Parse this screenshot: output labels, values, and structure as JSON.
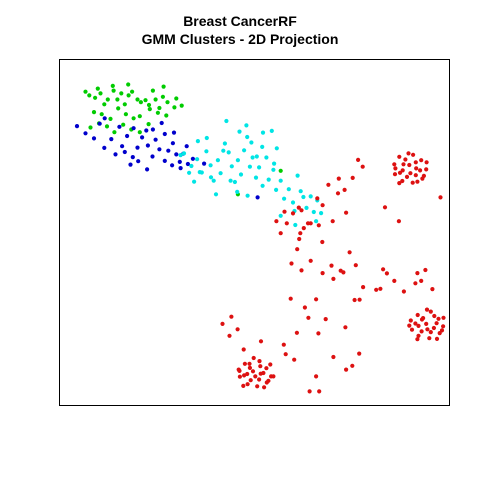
{
  "chart_data": {
    "type": "scatter",
    "title": "Breast CancerRF",
    "subtitle": "GMM Clusters - 2D Projection",
    "xlabel": "",
    "ylabel": "",
    "xlim": [
      0,
      100
    ],
    "ylim": [
      0,
      100
    ],
    "grid": false,
    "axes_visible": false,
    "series": [
      {
        "color": "#00cc00",
        "points": [
          [
            6.1,
            91.3
          ],
          [
            7.1,
            90.2
          ],
          [
            8.6,
            89.5
          ],
          [
            10.0,
            90.8
          ],
          [
            11.0,
            87.6
          ],
          [
            11.9,
            89.0
          ],
          [
            13.4,
            91.6
          ],
          [
            14.4,
            89.0
          ],
          [
            15.4,
            90.8
          ],
          [
            16.3,
            87.6
          ],
          [
            17.3,
            90.2
          ],
          [
            18.2,
            91.3
          ],
          [
            19.6,
            89.0
          ],
          [
            20.5,
            88.2
          ],
          [
            21.7,
            88.8
          ],
          [
            22.6,
            87.4
          ],
          [
            23.6,
            91.6
          ],
          [
            24.3,
            89.0
          ],
          [
            25.3,
            86.5
          ],
          [
            26.2,
            89.8
          ],
          [
            27.4,
            88.2
          ],
          [
            8.3,
            85.3
          ],
          [
            10.3,
            84.7
          ],
          [
            12.6,
            83.3
          ],
          [
            14.6,
            86.4
          ],
          [
            16.6,
            84.7
          ],
          [
            18.6,
            83.5
          ],
          [
            20.2,
            84.1
          ],
          [
            22.8,
            86.2
          ],
          [
            24.9,
            85.1
          ],
          [
            27.1,
            84.3
          ],
          [
            29.2,
            86.7
          ],
          [
            7.4,
            80.8
          ],
          [
            9.6,
            82.0
          ],
          [
            11.7,
            81.1
          ],
          [
            13.6,
            79.4
          ],
          [
            15.9,
            81.6
          ],
          [
            18.0,
            80.2
          ],
          [
            20.2,
            79.4
          ],
          [
            22.5,
            81.8
          ],
          [
            29.7,
            89.3
          ],
          [
            31.1,
            87.2
          ],
          [
            26.4,
            92.8
          ],
          [
            13.2,
            93.0
          ],
          [
            9.3,
            92.2
          ],
          [
            17.2,
            93.4
          ],
          [
            56.8,
            68.1
          ],
          [
            45.7,
            61.2
          ]
        ]
      },
      {
        "color": "#0000cc",
        "points": [
          [
            3.9,
            81.2
          ],
          [
            6.1,
            79.1
          ],
          [
            8.3,
            77.6
          ],
          [
            9.8,
            81.9
          ],
          [
            11.0,
            74.8
          ],
          [
            12.8,
            77.4
          ],
          [
            13.9,
            72.9
          ],
          [
            15.6,
            75.3
          ],
          [
            16.9,
            78.3
          ],
          [
            18.4,
            72.1
          ],
          [
            19.6,
            74.9
          ],
          [
            20.8,
            77.9
          ],
          [
            22.3,
            75.5
          ],
          [
            23.5,
            72.3
          ],
          [
            24.3,
            77.2
          ],
          [
            25.3,
            74.4
          ],
          [
            26.7,
            71.0
          ],
          [
            27.6,
            74.0
          ],
          [
            28.8,
            76.2
          ],
          [
            29.7,
            72.9
          ],
          [
            30.6,
            70.7
          ],
          [
            31.5,
            73.1
          ],
          [
            32.7,
            70.1
          ],
          [
            34.0,
            71.6
          ],
          [
            17.8,
            69.9
          ],
          [
            19.8,
            70.9
          ],
          [
            22.1,
            68.5
          ],
          [
            23.6,
            80.2
          ],
          [
            25.9,
            82.1
          ],
          [
            26.7,
            78.9
          ],
          [
            29.1,
            79.3
          ],
          [
            14.9,
            81.0
          ],
          [
            16.3,
            73.6
          ],
          [
            18.6,
            80.6
          ],
          [
            21.9,
            79.9
          ],
          [
            28.6,
            69.7
          ],
          [
            30.8,
            68.9
          ],
          [
            32.4,
            75.3
          ],
          [
            11.1,
            83.5
          ],
          [
            36.9,
            70.2
          ],
          [
            50.8,
            60.3
          ]
        ]
      },
      {
        "color": "#00e5e5",
        "points": [
          [
            31.7,
            73.2
          ],
          [
            33.6,
            69.5
          ],
          [
            35.1,
            71.5
          ],
          [
            36.3,
            67.6
          ],
          [
            37.5,
            73.8
          ],
          [
            38.6,
            69.7
          ],
          [
            39.4,
            65.2
          ],
          [
            40.5,
            71.2
          ],
          [
            41.2,
            67.4
          ],
          [
            42.3,
            76.1
          ],
          [
            43.3,
            73.5
          ],
          [
            44.1,
            69.4
          ],
          [
            44.9,
            64.8
          ],
          [
            45.7,
            71.2
          ],
          [
            46.5,
            67.0
          ],
          [
            47.3,
            74.1
          ],
          [
            48.1,
            78.0
          ],
          [
            48.8,
            69.3
          ],
          [
            49.5,
            72.0
          ],
          [
            50.4,
            66.1
          ],
          [
            51.2,
            69.1
          ],
          [
            52.0,
            75.1
          ],
          [
            53.1,
            72.0
          ],
          [
            53.7,
            65.5
          ],
          [
            54.9,
            68.4
          ],
          [
            55.6,
            62.5
          ],
          [
            56.8,
            65.2
          ],
          [
            57.7,
            59.9
          ],
          [
            58.9,
            62.7
          ],
          [
            60.0,
            58.8
          ],
          [
            61.2,
            66.7
          ],
          [
            62.0,
            62.1
          ],
          [
            63.5,
            57.2
          ],
          [
            64.6,
            60.6
          ],
          [
            65.4,
            56.0
          ],
          [
            66.3,
            59.4
          ],
          [
            67.3,
            55.7
          ],
          [
            46.1,
            79.6
          ],
          [
            43.8,
            65.2
          ],
          [
            40.0,
            61.2
          ],
          [
            38.7,
            66.2
          ],
          [
            35.8,
            67.7
          ],
          [
            33.0,
            67.5
          ],
          [
            30.8,
            72.7
          ],
          [
            34.3,
            64.9
          ],
          [
            60.6,
            52.2
          ],
          [
            56.8,
            54.9
          ],
          [
            60.4,
            56.3
          ],
          [
            52.2,
            79.3
          ],
          [
            49.2,
            76.4
          ],
          [
            45.5,
            61.9
          ],
          [
            48.2,
            60.8
          ],
          [
            50.6,
            72.3
          ],
          [
            41.9,
            74.0
          ],
          [
            47.9,
            81.4
          ],
          [
            42.7,
            82.7
          ],
          [
            55.1,
            70.2
          ],
          [
            62.7,
            60.4
          ],
          [
            52.1,
            63.7
          ],
          [
            66.0,
            53.3
          ],
          [
            54.5,
            79.8
          ],
          [
            55.8,
            74.7
          ],
          [
            37.6,
            77.7
          ],
          [
            35.3,
            76.8
          ]
        ]
      },
      {
        "color": "#dd1111",
        "points": [
          [
            88.7,
            70.0
          ],
          [
            91.2,
            72.8
          ],
          [
            93.3,
            71.2
          ],
          [
            94.6,
            68.5
          ],
          [
            93.6,
            65.8
          ],
          [
            91.1,
            64.6
          ],
          [
            88.4,
            65.1
          ],
          [
            86.5,
            67.1
          ],
          [
            86.3,
            70.0
          ],
          [
            87.6,
            72.2
          ],
          [
            90.2,
            69.8
          ],
          [
            92.0,
            68.8
          ],
          [
            91.9,
            66.8
          ],
          [
            89.6,
            66.3
          ],
          [
            88.5,
            68.2
          ],
          [
            90.5,
            67.4
          ],
          [
            93.0,
            68.2
          ],
          [
            89.2,
            71.4
          ],
          [
            91.9,
            70.6
          ],
          [
            87.8,
            67.5
          ],
          [
            86.6,
            68.8
          ],
          [
            94.7,
            70.6
          ],
          [
            87.6,
            64.5
          ],
          [
            90.0,
            73.2
          ],
          [
            92.3,
            64.9
          ],
          [
            94.0,
            66.6
          ],
          [
            93.5,
            24.5
          ],
          [
            95.8,
            26.8
          ],
          [
            97.8,
            24.7
          ],
          [
            99.0,
            22.5
          ],
          [
            98.1,
            20.5
          ],
          [
            95.4,
            19.0
          ],
          [
            92.6,
            19.7
          ],
          [
            90.9,
            21.5
          ],
          [
            90.6,
            24.2
          ],
          [
            92.4,
            25.8
          ],
          [
            94.6,
            23.2
          ],
          [
            96.6,
            22.0
          ],
          [
            95.8,
            20.8
          ],
          [
            93.4,
            21.0
          ],
          [
            92.6,
            22.6
          ],
          [
            94.9,
            21.6
          ],
          [
            97.3,
            23.4
          ],
          [
            93.8,
            24.9
          ],
          [
            96.7,
            25.5
          ],
          [
            91.8,
            23.3
          ],
          [
            90.2,
            22.7
          ],
          [
            99.1,
            25.0
          ],
          [
            92.3,
            18.7
          ],
          [
            94.8,
            27.4
          ],
          [
            97.4,
            18.8
          ],
          [
            98.7,
            21.3
          ],
          [
            48.8,
            10.3
          ],
          [
            51.3,
            12.3
          ],
          [
            53.1,
            10.2
          ],
          [
            54.3,
            7.8
          ],
          [
            53.2,
            6.0
          ],
          [
            50.7,
            4.9
          ],
          [
            48.2,
            5.5
          ],
          [
            46.2,
            7.7
          ],
          [
            46.1,
            9.4
          ],
          [
            47.5,
            11.5
          ],
          [
            49.6,
            9.3
          ],
          [
            51.6,
            8.6
          ],
          [
            51.2,
            6.9
          ],
          [
            49.0,
            6.7
          ],
          [
            48.1,
            8.5
          ],
          [
            50.2,
            7.8
          ],
          [
            52.3,
            8.8
          ],
          [
            48.7,
            11.5
          ],
          [
            51.5,
            10.8
          ],
          [
            47.3,
            8.1
          ],
          [
            45.9,
            9.8
          ],
          [
            54.1,
            11.3
          ],
          [
            47.1,
            5.0
          ],
          [
            49.8,
            13.2
          ],
          [
            52.5,
            4.6
          ],
          [
            53.6,
            6.5
          ],
          [
            78.1,
            69.3
          ],
          [
            76.9,
            71.3
          ],
          [
            75.5,
            66.0
          ],
          [
            73.4,
            62.5
          ],
          [
            71.9,
            65.8
          ],
          [
            69.2,
            64.0
          ],
          [
            67.7,
            58.0
          ],
          [
            66.3,
            60.0
          ],
          [
            64.6,
            52.7
          ],
          [
            62.2,
            56.5
          ],
          [
            60.0,
            55.6
          ],
          [
            58.4,
            52.7
          ],
          [
            57.8,
            56.1
          ],
          [
            55.7,
            53.3
          ],
          [
            56.8,
            49.8
          ],
          [
            62.8,
            51.3
          ],
          [
            61.1,
            45.1
          ],
          [
            59.6,
            40.9
          ],
          [
            62.2,
            38.9
          ],
          [
            64.6,
            41.7
          ],
          [
            67.7,
            38.1
          ],
          [
            70.0,
            40.3
          ],
          [
            73.1,
            38.3
          ],
          [
            76.3,
            40.4
          ],
          [
            74.7,
            44.2
          ],
          [
            78.2,
            34.0
          ],
          [
            81.6,
            33.2
          ],
          [
            83.4,
            39.2
          ],
          [
            84.4,
            38.0
          ],
          [
            86.3,
            35.8
          ],
          [
            88.8,
            32.7
          ],
          [
            91.8,
            35.1
          ],
          [
            93.3,
            35.8
          ],
          [
            94.4,
            39.0
          ],
          [
            96.2,
            33.4
          ],
          [
            98.3,
            60.3
          ],
          [
            87.5,
            53.3
          ],
          [
            66.0,
            30.4
          ],
          [
            63.1,
            28.0
          ],
          [
            64.0,
            25.0
          ],
          [
            61.0,
            20.6
          ],
          [
            58.1,
            14.3
          ],
          [
            57.6,
            17.1
          ],
          [
            60.3,
            12.7
          ],
          [
            66.0,
            7.8
          ],
          [
            64.3,
            3.4
          ],
          [
            70.5,
            13.5
          ],
          [
            75.4,
            10.9
          ],
          [
            73.6,
            22.2
          ],
          [
            68.5,
            24.6
          ],
          [
            76.0,
            30.2
          ],
          [
            43.5,
            19.7
          ],
          [
            45.6,
            21.6
          ],
          [
            41.7,
            23.2
          ],
          [
            44.0,
            25.3
          ],
          [
            47.2,
            15.7
          ],
          [
            51.7,
            18.1
          ],
          [
            71.7,
            61.5
          ],
          [
            73.8,
            55.8
          ],
          [
            70.3,
            53.3
          ],
          [
            66.7,
            52.1
          ],
          [
            61.5,
            57.3
          ],
          [
            63.9,
            52.7
          ],
          [
            61.9,
            49.8
          ],
          [
            70.5,
            36.4
          ],
          [
            77.3,
            30.3
          ],
          [
            82.7,
            33.5
          ],
          [
            92.3,
            38.1
          ],
          [
            67.6,
            47.2
          ],
          [
            83.9,
            57.4
          ],
          [
            66.6,
            20.4
          ],
          [
            77.2,
            14.5
          ],
          [
            54.9,
            7.8
          ],
          [
            59.4,
            30.6
          ],
          [
            73.8,
            9.8
          ],
          [
            66.8,
            3.4
          ],
          [
            72.4,
            38.8
          ],
          [
            61.6,
            48.1
          ]
        ]
      }
    ]
  }
}
